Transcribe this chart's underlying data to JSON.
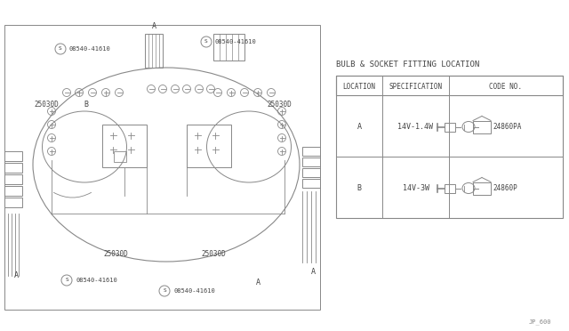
{
  "bg_color": "#ffffff",
  "line_color": "#888888",
  "text_color": "#444444",
  "title": "BULB & SOCKET FITTING LOCATION",
  "table_headers": [
    "LOCATION",
    "SPECIFICATION",
    "CODE NO."
  ],
  "table_rows": [
    [
      "A",
      "14V-1.4W",
      "24860PA"
    ],
    [
      "B",
      "14V-3W",
      "24860P"
    ]
  ],
  "footer_text": "JP_600",
  "screw_label": "08540-41610"
}
